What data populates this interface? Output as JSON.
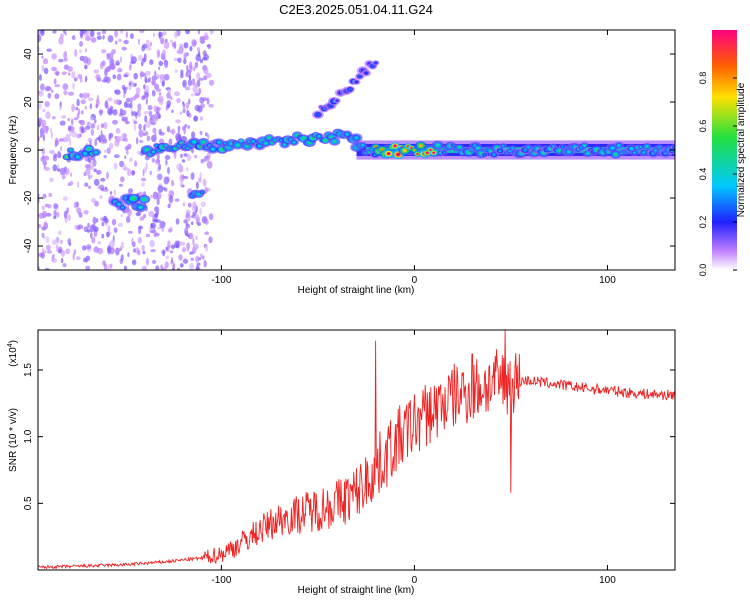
{
  "title": "C2E3.2025.051.04.11.G24",
  "colorbar": {
    "label": "Normalized spectral amplitude",
    "ticks": [
      "0.0",
      "0.2",
      "0.4",
      "0.6",
      "0.8"
    ],
    "range": [
      0,
      1
    ]
  },
  "chart_data": [
    {
      "type": "heatmap",
      "title": "",
      "xlabel": "Height of straight line (km)",
      "ylabel": "Frequency (Hz)",
      "xlim": [
        -195,
        135
      ],
      "ylim": [
        -50,
        50
      ],
      "xticks": [
        -100,
        0,
        100
      ],
      "yticks": [
        -40,
        -20,
        0,
        20,
        40
      ],
      "xtick_labels": [
        "-100",
        "0",
        "100"
      ],
      "ytick_labels": [
        "-40",
        "-20",
        "0",
        "20",
        "40"
      ],
      "colormap": "rainbow",
      "features": [
        {
          "x_range": [
            -180,
            -165
          ],
          "y": -1,
          "amplitude": 0.5
        },
        {
          "x_range": [
            -155,
            -140
          ],
          "y": -22,
          "amplitude": 0.45
        },
        {
          "x_range": [
            -115,
            -110
          ],
          "y": -18,
          "amplitude": 0.4
        },
        {
          "x_range": [
            -140,
            -30
          ],
          "y_start": 0,
          "y_end": 6,
          "amplitude": 0.45
        },
        {
          "x_range": [
            -50,
            -20
          ],
          "y_start": 15,
          "y_end": 37,
          "amplitude": 0.25
        },
        {
          "x_range": [
            -30,
            135
          ],
          "y": 0,
          "amplitude": 0.4
        },
        {
          "x_range": [
            -20,
            10
          ],
          "y": 0,
          "amplitude": 0.9
        }
      ]
    },
    {
      "type": "line",
      "title": "",
      "xlabel": "Height of straight line (km)",
      "ylabel": "SNR (10 * v/v)",
      "y_multiplier": "(x10",
      "y_multiplier_exp": "4",
      "xlim": [
        -195,
        135
      ],
      "ylim": [
        0,
        1.8
      ],
      "xticks": [
        -100,
        0,
        100
      ],
      "yticks": [
        0.5,
        1.0,
        1.5
      ],
      "xtick_labels": [
        "-100",
        "0",
        "100"
      ],
      "ytick_labels": [
        "0.5",
        "1.0",
        "1.5"
      ],
      "series": [
        {
          "color": "#ee2222",
          "x": [
            -195,
            -170,
            -150,
            -130,
            -110,
            -100,
            -90,
            -80,
            -70,
            -60,
            -50,
            -40,
            -30,
            -20,
            -10,
            0,
            10,
            20,
            30,
            40,
            50,
            60,
            70,
            80,
            90,
            100,
            110,
            120,
            135
          ],
          "y": [
            0.02,
            0.03,
            0.04,
            0.06,
            0.09,
            0.12,
            0.2,
            0.3,
            0.38,
            0.42,
            0.46,
            0.5,
            0.58,
            0.75,
            0.95,
            1.1,
            1.2,
            1.3,
            1.35,
            1.4,
            1.42,
            1.42,
            1.4,
            1.38,
            1.36,
            1.35,
            1.33,
            1.32,
            1.31
          ],
          "peaks": [
            {
              "x": -20,
              "y": 1.72
            },
            {
              "x": 30,
              "y": 1.62
            },
            {
              "x": 47,
              "y": 1.8
            },
            {
              "x": 50,
              "y": 0.58
            }
          ]
        }
      ]
    }
  ]
}
